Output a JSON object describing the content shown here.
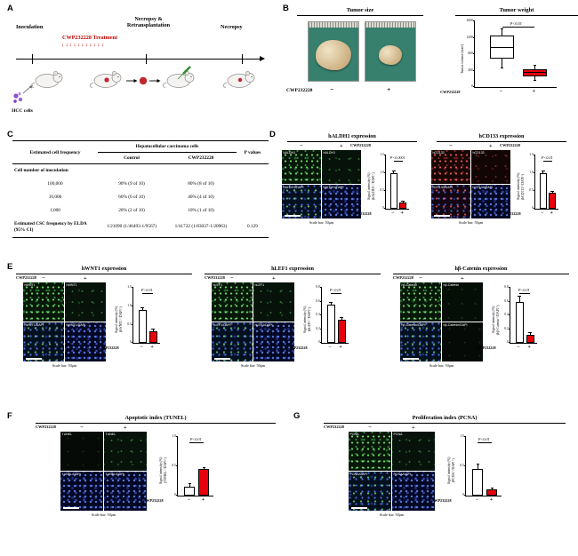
{
  "common": {
    "cwp": "CWP232228",
    "minus": "−",
    "plus": "+",
    "scale_bar": "Scale bar: 50μm"
  },
  "panel_labels": {
    "a": "A",
    "b": "B",
    "c": "C",
    "d": "D",
    "e": "E",
    "f": "F",
    "g": "G"
  },
  "panelA": {
    "inoculation": "Inoculation",
    "treatment": "CWP232228 Treatment",
    "treatment_arrows": "↓↓↓↓↓↓↓↓↓↓↓",
    "necropsy_retransplantation_line1": "Necropsy &",
    "necropsy_retransplantation_line2": "Retransplantation",
    "necropsy": "Necropsy",
    "hcc_cells": "HCC cells"
  },
  "panelB": {
    "tumor_size_title": "Tumor size"
  },
  "panelC": {
    "header_group": "Hepatocellular carcinoma cells",
    "header_left": "Estimated cell frequency",
    "header_control": "Control",
    "header_treated": "CWP232228",
    "header_p": "P values",
    "rows": [
      {
        "c0": "Cell number of inoculation",
        "c1": "",
        "c2": "",
        "c3": ""
      },
      {
        "c0": "100,000",
        "c1": "90% (9 of 10)",
        "c2": "80% (8 of 10)",
        "c3": ""
      },
      {
        "c0": "10,000",
        "c1": "60% (6 of 10)",
        "c2": "40% (4 of 10)",
        "c3": ""
      },
      {
        "c0": "1,000",
        "c1": "20% (2 of 10)",
        "c2": "10% (1 of 10)",
        "c3": ""
      },
      {
        "c0": "Estimated CSC frequency by ELDA (95% CI)",
        "c1": "1/21090 (1/46493-1/9567)",
        "c2": "1/41722 (1/83037-1/20963)",
        "c3": "0.129"
      }
    ]
  },
  "panelD": {
    "aldh1": {
      "title": "hALDH1 expression",
      "tiles": [
        "hALDH1",
        "hALDH1",
        "hALDH1/DAPI",
        "hALDH1/DAPI"
      ]
    },
    "cd133": {
      "title": "hCD133 expression",
      "tiles": [
        "hCD133",
        "hCD133",
        "hCD133/DAPI",
        "hCD133/DAPI"
      ]
    }
  },
  "panelE": {
    "wnt1": {
      "title": "hWNT1 expression",
      "tiles": [
        "hWNT1",
        "hWNT1",
        "hWNT1/DAPI",
        "hWNT1/DAPI"
      ]
    },
    "lef1": {
      "title": "hLEF1 expression",
      "tiles": [
        "hLEF1",
        "hLEF1",
        "hLEF1/DAPI",
        "hLEF1/DAPI"
      ]
    },
    "bcatenin": {
      "title": "hβ-Catenin expression",
      "tiles": [
        "hβ-Catenin",
        "hβ-Catenin",
        "hβ-Catenin/DAPI",
        "hβ-Catenin/DAPI"
      ]
    }
  },
  "panelF": {
    "title": "Apoptotic index (TUNEL)",
    "tiles": [
      "TUNEL",
      "TUNEL",
      "TUNEL/DAPI",
      "TUNEL/DAPI"
    ]
  },
  "panelG": {
    "title": "Proliferation index (PCNA)",
    "tiles": [
      "PCNA",
      "PCNA",
      "PCNA/DAPI",
      "PCNA/DAPI"
    ]
  },
  "chart_data": [
    {
      "type": "boxplot",
      "title": "Tumor weight",
      "ylabel": "Tumor volume (mm³)",
      "ylim": [
        0,
        1600
      ],
      "yticks": [
        "0",
        "400",
        "800",
        "1200",
        "1600"
      ],
      "categories": [
        "−",
        "+"
      ],
      "x_axis_label": "CWP232228",
      "p_label": "P<0.05",
      "boxes": [
        {
          "name": "Control",
          "whisker_low": 480,
          "q1": 700,
          "median": 950,
          "q3": 1250,
          "whisker_high": 1400,
          "fill": "#ffffff"
        },
        {
          "name": "CWP232228",
          "whisker_low": 180,
          "q1": 270,
          "median": 350,
          "q3": 440,
          "whisker_high": 520,
          "fill": "#e8000b"
        }
      ]
    },
    {
      "type": "bar",
      "panel": "D-hALDH1",
      "ylabel": "Signal intensity (%)",
      "ylabel_sub": "(hALDH1⁺/DAPI⁺)",
      "ylim": [
        0,
        1.5
      ],
      "yticks": [
        "0",
        "0.5",
        "1.0",
        "1.5"
      ],
      "categories": [
        "−",
        "+"
      ],
      "x_axis_label": "CWP232228",
      "p_label": "P<0.0001",
      "names": [
        "Control",
        "CWP232228"
      ],
      "values": [
        1.0,
        0.18
      ],
      "errors": [
        0.05,
        0.02
      ],
      "colors": [
        "#ffffff",
        "#e8000b"
      ]
    },
    {
      "type": "bar",
      "panel": "D-hCD133",
      "ylabel": "Signal intensity (%)",
      "ylabel_sub": "(hCD133⁺/DAPI⁺)",
      "ylim": [
        0,
        1.5
      ],
      "yticks": [
        "0",
        "0.5",
        "1.0",
        "1.5"
      ],
      "categories": [
        "−",
        "+"
      ],
      "x_axis_label": "CWP232228",
      "p_label": "P<0.01",
      "names": [
        "Control",
        "CWP232228"
      ],
      "values": [
        1.0,
        0.45
      ],
      "errors": [
        0.05,
        0.04
      ],
      "colors": [
        "#ffffff",
        "#e8000b"
      ]
    },
    {
      "type": "bar",
      "panel": "E-hWNT1",
      "ylabel": "Signal intensity (%)",
      "ylabel_sub": "(hWNT1⁺/DAPI⁺)",
      "ylim": [
        0,
        1.5
      ],
      "yticks": [
        "0",
        "0.5",
        "1.0",
        "1.5"
      ],
      "categories": [
        "−",
        "+"
      ],
      "x_axis_label": "CWP232228",
      "p_label": "P<0.01",
      "names": [
        "Control",
        "CWP232228"
      ],
      "values": [
        0.9,
        0.32
      ],
      "errors": [
        0.06,
        0.04
      ],
      "colors": [
        "#ffffff",
        "#e8000b"
      ]
    },
    {
      "type": "bar",
      "panel": "E-hLEF1",
      "ylabel": "Signal intensity (%)",
      "ylabel_sub": "(hLEF1⁺/DAPI⁺)",
      "ylim": [
        0,
        0.8
      ],
      "yticks": [
        "0",
        "0.2",
        "0.4",
        "0.6",
        "0.8"
      ],
      "categories": [
        "−",
        "+"
      ],
      "x_axis_label": "CWP232228",
      "p_label": "P<0.01",
      "names": [
        "Control",
        "CWP232228"
      ],
      "values": [
        0.55,
        0.33
      ],
      "errors": [
        0.04,
        0.03
      ],
      "colors": [
        "#ffffff",
        "#e8000b"
      ]
    },
    {
      "type": "bar",
      "panel": "E-hb-Catenin",
      "ylabel": "Signal intensity (%)",
      "ylabel_sub": "(hβ-Catenin⁺/DAPI⁺)",
      "ylim": [
        0,
        0.8
      ],
      "yticks": [
        "0",
        "0.2",
        "0.4",
        "0.6",
        "0.8"
      ],
      "categories": [
        "−",
        "+"
      ],
      "x_axis_label": "CWP232228",
      "p_label": "P<0.01",
      "names": [
        "Control",
        "CWP232228"
      ],
      "values": [
        0.6,
        0.12
      ],
      "errors": [
        0.08,
        0.02
      ],
      "colors": [
        "#ffffff",
        "#e8000b"
      ]
    },
    {
      "type": "bar",
      "panel": "F-TUNEL",
      "ylabel": "Signal intensity (%)",
      "ylabel_sub": "(TUNEL⁺/DAPI⁺)",
      "ylim": [
        0,
        1.0
      ],
      "yticks": [
        "0",
        "0.5",
        "1.0"
      ],
      "categories": [
        "−",
        "+"
      ],
      "x_axis_label": "CWP232228",
      "p_label": "P<0.01",
      "names": [
        "Control",
        "CWP232228"
      ],
      "values": [
        0.15,
        0.45
      ],
      "errors": [
        0.05,
        0.03
      ],
      "colors": [
        "#ffffff",
        "#e8000b"
      ]
    },
    {
      "type": "bar",
      "panel": "G-PCNA",
      "ylabel": "Signal intensity (%)",
      "ylabel_sub": "(PCNA⁺/DAPI⁺)",
      "ylim": [
        0,
        1.0
      ],
      "yticks": [
        "0",
        "0.5",
        "1.0"
      ],
      "categories": [
        "−",
        "+"
      ],
      "x_axis_label": "CWP232228",
      "p_label": "P<0.01",
      "names": [
        "Control",
        "CWP232228"
      ],
      "values": [
        0.45,
        0.1
      ],
      "errors": [
        0.08,
        0.02
      ],
      "colors": [
        "#ffffff",
        "#e8000b"
      ]
    }
  ]
}
